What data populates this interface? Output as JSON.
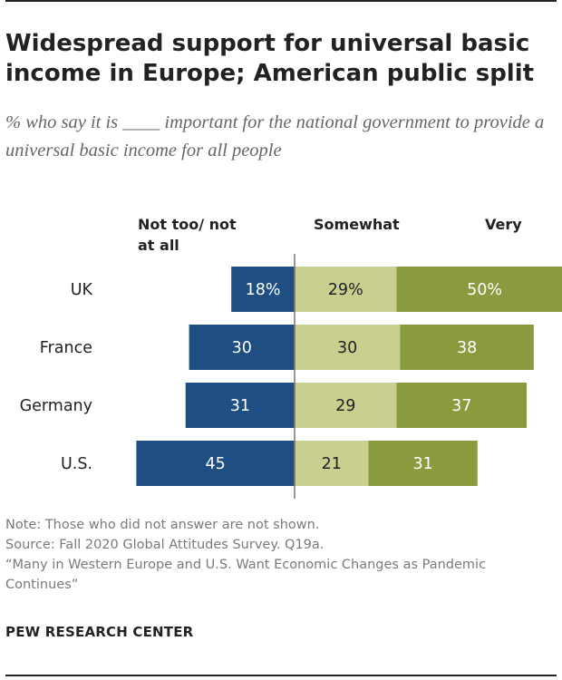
{
  "header": {
    "title": "Widespread support for universal basic income in Europe; American public split",
    "subtitle": "% who say it is ____ important for the national government to provide a universal basic income for all people"
  },
  "column_headers": {
    "not_too": "Not too/ not at all",
    "somewhat": "Somewhat",
    "very": "Very"
  },
  "colors": {
    "not_too": "#1f4e82",
    "somewhat": "#c8cf8f",
    "very": "#8a9a3f",
    "axis": "#777777"
  },
  "chart_data": {
    "type": "bar",
    "stacking": "diverging",
    "categories": [
      "UK",
      "France",
      "Germany",
      "U.S."
    ],
    "series": [
      {
        "name": "Not too/ not at all",
        "values": [
          18,
          30,
          31,
          45
        ],
        "labels": [
          "18%",
          "30",
          "31",
          "45"
        ]
      },
      {
        "name": "Somewhat",
        "values": [
          29,
          30,
          29,
          21
        ],
        "labels": [
          "29%",
          "30",
          "29",
          "21"
        ]
      },
      {
        "name": "Very",
        "values": [
          50,
          38,
          37,
          31
        ],
        "labels": [
          "50%",
          "38",
          "37",
          "31"
        ]
      }
    ],
    "title": "Widespread support for universal basic income in Europe; American public split",
    "xlabel": "",
    "ylabel": ""
  },
  "footer": {
    "note": "Note: Those who did not answer are not shown.",
    "source": "Source: Fall 2020 Global Attitudes Survey. Q19a.",
    "report": "“Many in Western Europe and U.S. Want Economic Changes as Pandemic Continues”",
    "brand": "PEW RESEARCH CENTER"
  }
}
